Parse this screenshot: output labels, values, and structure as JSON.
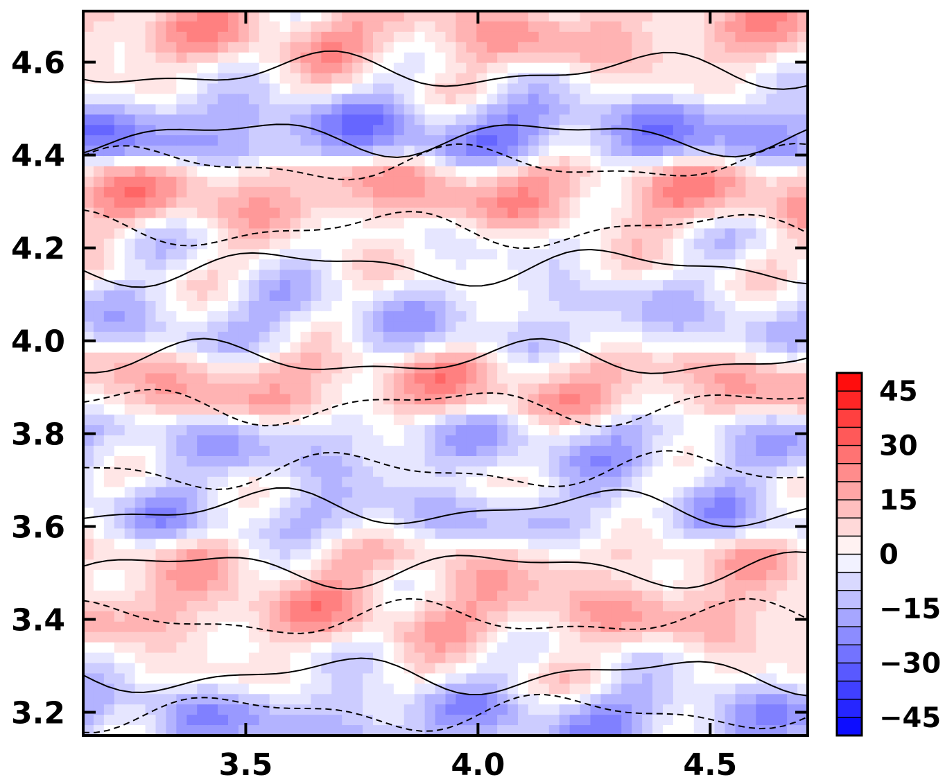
{
  "chart_data": {
    "type": "heatmap",
    "title": "",
    "xlabel": "",
    "ylabel": "",
    "xlim": [
      3.15,
      4.71
    ],
    "ylim": [
      3.15,
      4.71
    ],
    "x_ticks": [
      "3.5",
      "4.0",
      "4.5"
    ],
    "x_tick_values": [
      3.5,
      4.0,
      4.5
    ],
    "y_ticks": [
      "3.2",
      "3.4",
      "3.6",
      "3.8",
      "4.0",
      "4.2",
      "4.4",
      "4.6"
    ],
    "y_tick_values": [
      3.2,
      3.4,
      3.6,
      3.8,
      4.0,
      4.2,
      4.4,
      4.6
    ],
    "colorbar": {
      "range": [
        -50,
        50
      ],
      "step": 5,
      "labels": [
        "45",
        "30",
        "15",
        "0",
        "−15",
        "−30",
        "−45"
      ],
      "label_values": [
        45,
        30,
        15,
        0,
        -15,
        -30,
        -45
      ],
      "colors": {
        "negative": "#0000ff",
        "zero": "#ffffff",
        "positive": "#ff0000"
      },
      "placement": "right"
    },
    "field_description_bands": [
      {
        "y": 4.66,
        "value": 18
      },
      {
        "y": 4.45,
        "value": -25
      },
      {
        "y": 4.32,
        "value": 20
      },
      {
        "y": 4.05,
        "value": -12
      },
      {
        "y": 3.9,
        "value": 18
      },
      {
        "y": 3.77,
        "value": -15
      },
      {
        "y": 3.62,
        "value": -14
      },
      {
        "y": 3.52,
        "value": 12
      },
      {
        "y": 3.42,
        "value": 18
      },
      {
        "y": 3.18,
        "value": -20
      }
    ]
  }
}
